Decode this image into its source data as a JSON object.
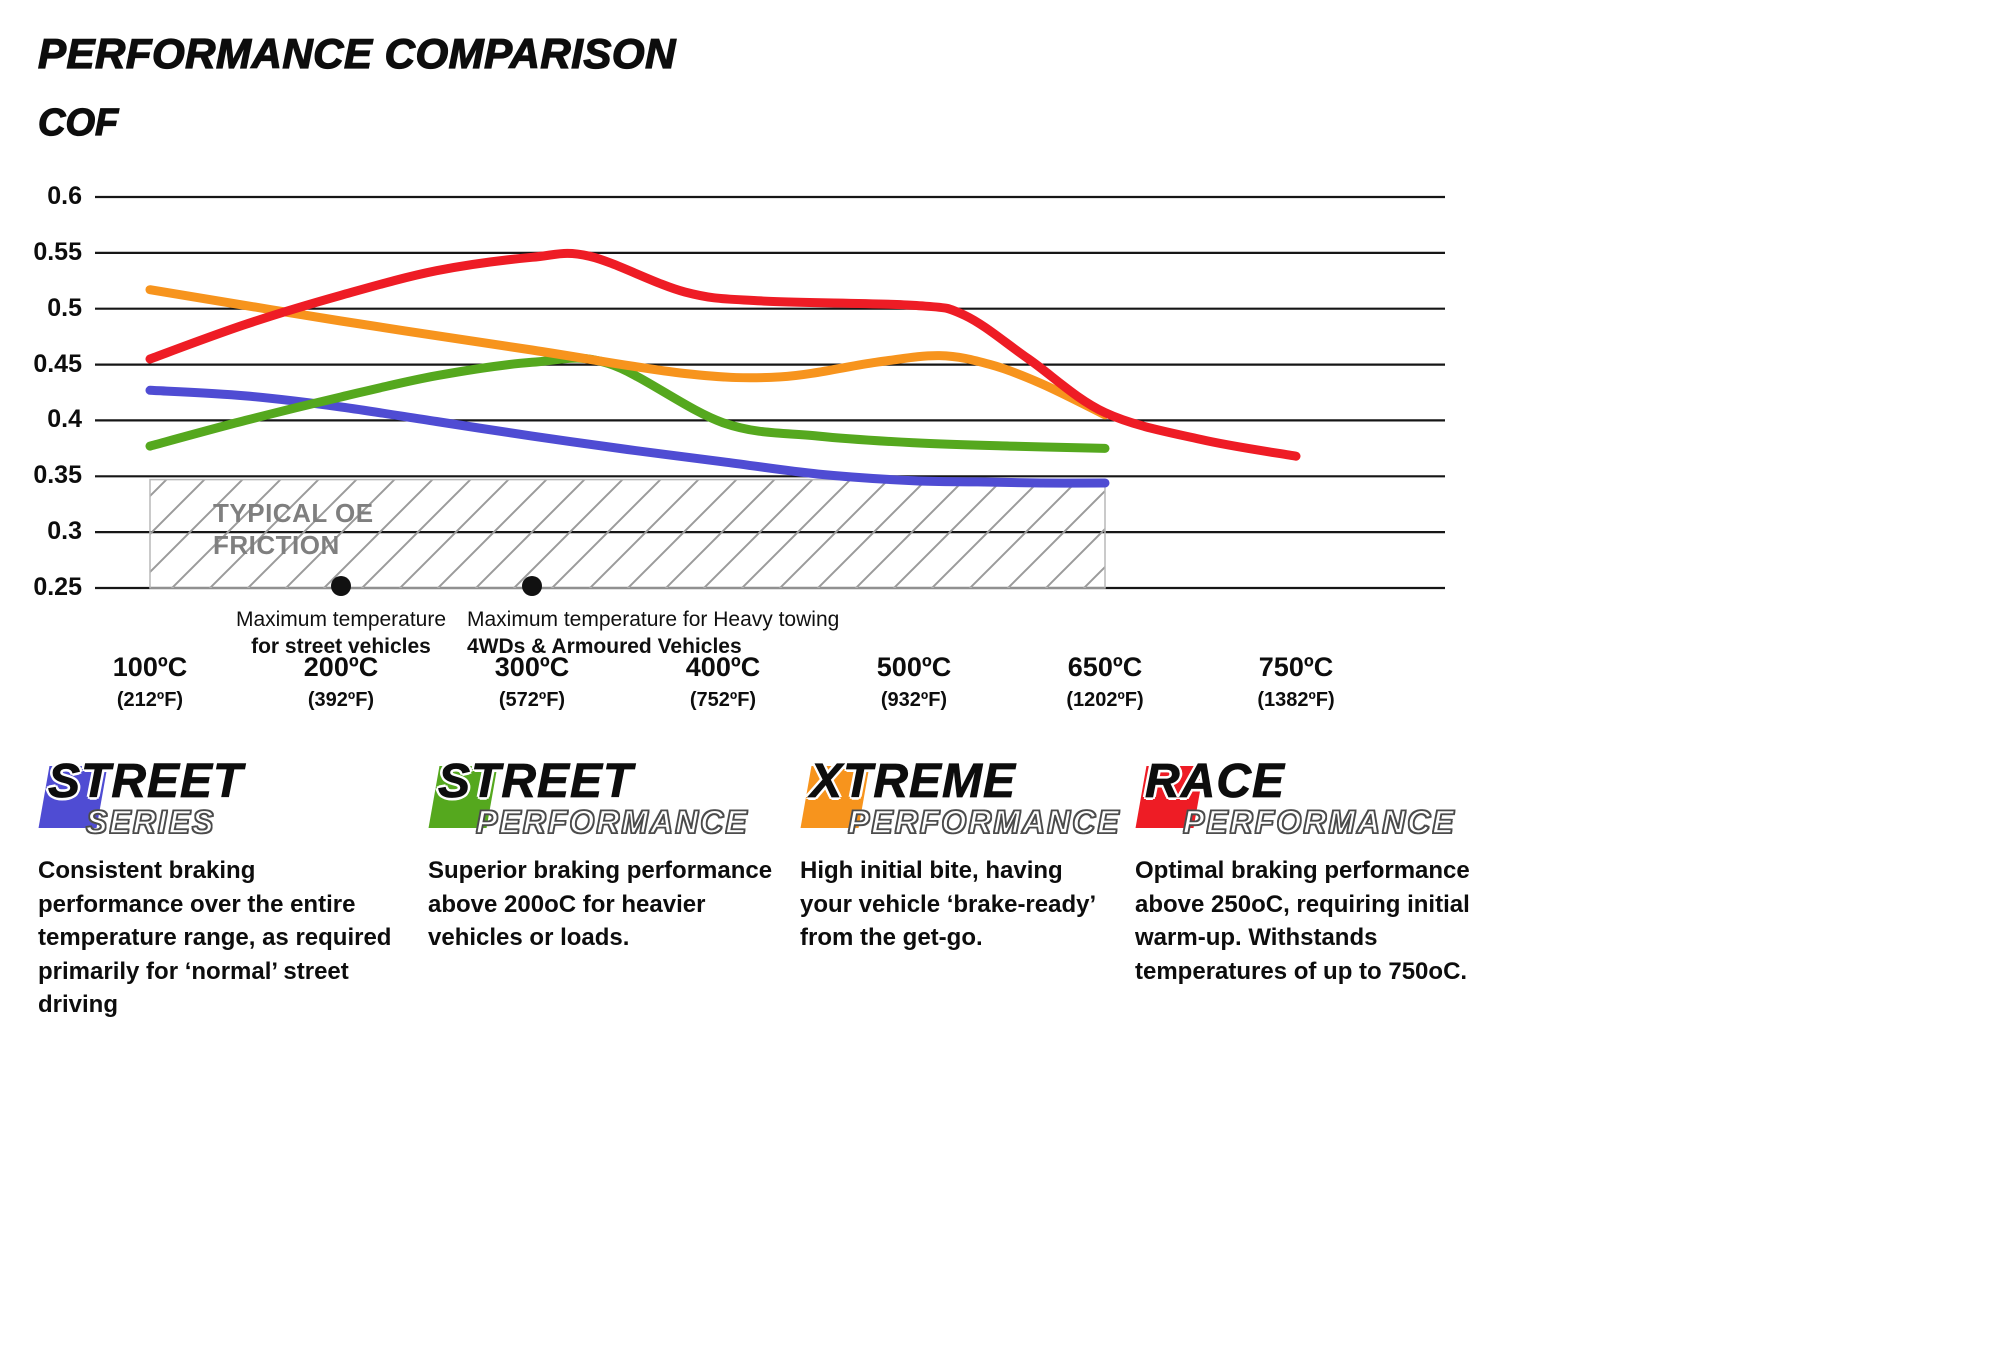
{
  "header": {
    "title": "PERFORMANCE COMPARISON",
    "y_axis_title": "COF"
  },
  "chart_data": {
    "type": "line",
    "title": "PERFORMANCE COMPARISON",
    "ylabel": "COF",
    "xlabel": "",
    "ylim": [
      0.25,
      0.6
    ],
    "grid": true,
    "legend_position": "bottom",
    "yticks": [
      0.6,
      0.55,
      0.5,
      0.45,
      0.4,
      0.35,
      0.3,
      0.25
    ],
    "ytick_labels": [
      "0.6",
      "0.55",
      "0.5",
      "0.45",
      "0.4",
      "0.35",
      "0.3",
      "0.25"
    ],
    "x_categories": [
      {
        "temp_c": 100,
        "label": "100ºC",
        "sub": "(212ºF)"
      },
      {
        "temp_c": 200,
        "label": "200ºC",
        "sub": "(392ºF)"
      },
      {
        "temp_c": 300,
        "label": "300ºC",
        "sub": "(572ºF)"
      },
      {
        "temp_c": 400,
        "label": "400ºC",
        "sub": "(752ºF)"
      },
      {
        "temp_c": 500,
        "label": "500ºC",
        "sub": "(932ºF)"
      },
      {
        "temp_c": 650,
        "label": "650ºC",
        "sub": "(1202ºF)"
      },
      {
        "temp_c": 750,
        "label": "750ºC",
        "sub": "(1382ºF)"
      }
    ],
    "series": [
      {
        "name": "Street Series",
        "color": "#4f4cd3",
        "points": [
          [
            100,
            0.427
          ],
          [
            150,
            0.422
          ],
          [
            200,
            0.412
          ],
          [
            250,
            0.399
          ],
          [
            300,
            0.386
          ],
          [
            350,
            0.374
          ],
          [
            400,
            0.363
          ],
          [
            450,
            0.352
          ],
          [
            500,
            0.346
          ],
          [
            550,
            0.345
          ],
          [
            600,
            0.344
          ],
          [
            650,
            0.344
          ]
        ]
      },
      {
        "name": "Street Performance",
        "color": "#55a81e",
        "points": [
          [
            100,
            0.377
          ],
          [
            150,
            0.4
          ],
          [
            200,
            0.421
          ],
          [
            250,
            0.44
          ],
          [
            300,
            0.452
          ],
          [
            340,
            0.451
          ],
          [
            400,
            0.398
          ],
          [
            450,
            0.386
          ],
          [
            500,
            0.38
          ],
          [
            575,
            0.377
          ],
          [
            650,
            0.375
          ]
        ]
      },
      {
        "name": "Xtreme Performance",
        "color": "#f7941d",
        "points": [
          [
            100,
            0.517
          ],
          [
            200,
            0.489
          ],
          [
            300,
            0.463
          ],
          [
            380,
            0.442
          ],
          [
            430,
            0.439
          ],
          [
            480,
            0.452
          ],
          [
            520,
            0.458
          ],
          [
            560,
            0.45
          ],
          [
            600,
            0.433
          ],
          [
            650,
            0.405
          ]
        ]
      },
      {
        "name": "Race Performance",
        "color": "#ee1c25",
        "points": [
          [
            100,
            0.455
          ],
          [
            150,
            0.486
          ],
          [
            200,
            0.512
          ],
          [
            250,
            0.534
          ],
          [
            300,
            0.546
          ],
          [
            330,
            0.547
          ],
          [
            380,
            0.515
          ],
          [
            420,
            0.507
          ],
          [
            500,
            0.503
          ],
          [
            540,
            0.494
          ],
          [
            590,
            0.455
          ],
          [
            650,
            0.407
          ],
          [
            700,
            0.383
          ],
          [
            750,
            0.368
          ]
        ]
      }
    ],
    "oe_band": {
      "label_line1": "TYPICAL OE",
      "label_line2": "FRICTION",
      "x_range_c": [
        100,
        650
      ],
      "y_range": [
        0.25,
        0.347
      ]
    },
    "annotations": [
      {
        "temp_c": 200,
        "y": 0.25,
        "line1": "Maximum temperature",
        "line2": "for street vehicles"
      },
      {
        "temp_c": 300,
        "y": 0.25,
        "line1": "Maximum temperature for Heavy towing",
        "line2": "4WDs & Armoured Vehicles"
      }
    ]
  },
  "legend": [
    {
      "name": "Street Series",
      "word1": "STREET",
      "word2": "SERIES",
      "color": "#4f4cd3",
      "description": "Consistent braking performance over the entire temperature range, as required primarily for ‘normal’ street driving"
    },
    {
      "name": "Street Performance",
      "word1": "STREET",
      "word2": "PERFORMANCE",
      "color": "#55a81e",
      "description": "Superior braking performance above 200oC for heavier vehicles or loads."
    },
    {
      "name": "Xtreme Performance",
      "word1": "XTREME",
      "word2": "PERFORMANCE",
      "color": "#f7941d",
      "description": "High initial bite, having your vehicle ‘brake-ready’ from the get-go."
    },
    {
      "name": "Race Performance",
      "word1": "RACE",
      "word2": "PERFORMANCE",
      "color": "#ee1c25",
      "description": "Optimal braking performance above 250oC, requiring initial warm-up. Withstands temperatures of up to 750oC."
    }
  ]
}
